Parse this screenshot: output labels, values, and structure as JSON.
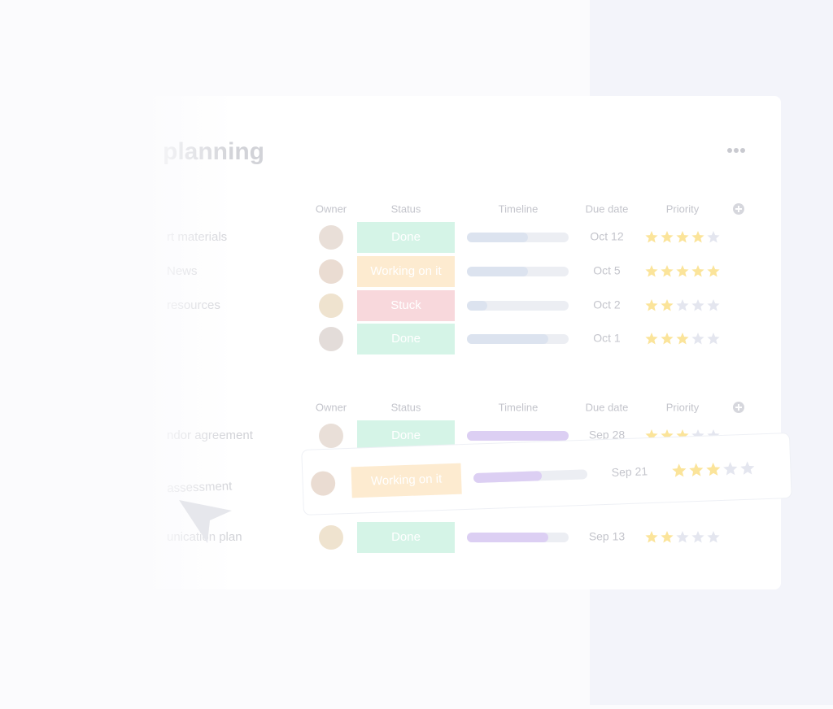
{
  "header": {
    "title": "planning"
  },
  "groups": [
    {
      "columns": [
        "Owner",
        "Status",
        "Timeline",
        "Due date",
        "Priority"
      ],
      "rows": [
        {
          "name": "rt materials",
          "status": "Done",
          "status_color": "#d5f4e7",
          "progress": 0.6,
          "due": "Oct 12",
          "rating": 4
        },
        {
          "name": "News",
          "status": "Working on it",
          "status_color": "#fdebd0",
          "progress": 0.6,
          "due": "Oct 5",
          "rating": 5
        },
        {
          "name": "resources",
          "status": "Stuck",
          "status_color": "#f8d8dc",
          "progress": 0.2,
          "due": "Oct 2",
          "rating": 2
        },
        {
          "status": "Done",
          "status_color": "#d5f4e7",
          "progress": 0.8,
          "due": "Oct 1",
          "rating": 3
        }
      ]
    },
    {
      "columns": [
        "Owner",
        "Status",
        "Timeline",
        "Due date",
        "Priority"
      ],
      "rows": [
        {
          "name": "ndor agreement",
          "status": "Done",
          "status_color": "#d5f4e7",
          "progress": 1.0,
          "due": "Sep 28",
          "rating": 3
        },
        {
          "name": "assessment",
          "status": "Working on it",
          "status_color": "#fdebd0",
          "progress": 0.6,
          "due": "Sep 21",
          "rating": 3
        },
        {
          "name": "unication plan",
          "status": "Done",
          "status_color": "#d5f4e7",
          "progress": 0.8,
          "due": "Sep 13",
          "rating": 2
        }
      ]
    }
  ]
}
